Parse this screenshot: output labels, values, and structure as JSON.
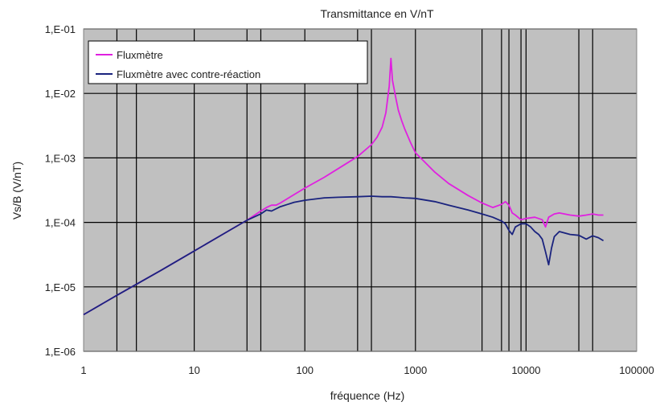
{
  "chart_data": {
    "type": "line",
    "title": "Transmittance en V/nT",
    "xlabel": "fréquence (Hz)",
    "ylabel": "Vs/B (V/nT)",
    "x_scale": "log",
    "y_scale": "log",
    "xlim": [
      1,
      100000
    ],
    "ylim": [
      1e-06,
      0.1
    ],
    "x_ticks": [
      {
        "value": 1,
        "label": "1"
      },
      {
        "value": 10,
        "label": "10"
      },
      {
        "value": 100,
        "label": "100"
      },
      {
        "value": 1000,
        "label": "1000"
      },
      {
        "value": 10000,
        "label": "10000"
      },
      {
        "value": 100000,
        "label": "100000"
      }
    ],
    "y_ticks": [
      {
        "value": 0.1,
        "label": "1,E-01"
      },
      {
        "value": 0.01,
        "label": "1,E-02"
      },
      {
        "value": 0.001,
        "label": "1,E-03"
      },
      {
        "value": 0.0001,
        "label": "1,E-04"
      },
      {
        "value": 1e-05,
        "label": "1,E-05"
      },
      {
        "value": 1e-06,
        "label": "1,E-06"
      }
    ],
    "x_gridlines": [
      2,
      3,
      10,
      30,
      40,
      100,
      300,
      400,
      1000,
      4000,
      6000,
      7000,
      9000,
      10000,
      30000,
      40000
    ],
    "grid": true,
    "legend_position": "top-left",
    "plot_background": "#c0c0c0",
    "series": [
      {
        "name": "Fluxmètre",
        "color": "#e020e0",
        "x": [
          1,
          2,
          5,
          10,
          20,
          30,
          40,
          45,
          50,
          55,
          60,
          80,
          100,
          150,
          200,
          300,
          400,
          450,
          500,
          540,
          580,
          600,
          620,
          660,
          700,
          750,
          800,
          900,
          1000,
          1500,
          2000,
          3000,
          4000,
          5000,
          6000,
          6500,
          7000,
          7500,
          8000,
          9000,
          10000,
          12000,
          14000,
          15000,
          16000,
          18000,
          20000,
          25000,
          30000,
          35000,
          40000,
          45000,
          50000
        ],
        "y": [
          3.7e-06,
          7.4e-06,
          1.8e-05,
          3.6e-05,
          7.2e-05,
          0.000108,
          0.00015,
          0.00017,
          0.000185,
          0.000185,
          0.0002,
          0.00027,
          0.00034,
          0.0005,
          0.00068,
          0.00105,
          0.0016,
          0.0021,
          0.003,
          0.005,
          0.013,
          0.035,
          0.016,
          0.009,
          0.0055,
          0.0038,
          0.0028,
          0.00175,
          0.0012,
          0.0006,
          0.0004,
          0.00026,
          0.0002,
          0.00017,
          0.00019,
          0.00021,
          0.000185,
          0.00014,
          0.00013,
          0.00011,
          0.000115,
          0.00012,
          0.00011,
          8.5e-05,
          0.00012,
          0.000135,
          0.00014,
          0.00013,
          0.000125,
          0.00013,
          0.000135,
          0.00013,
          0.00013
        ]
      },
      {
        "name": "Fluxmètre avec contre-réaction",
        "color": "#1a237e",
        "x": [
          1,
          2,
          5,
          10,
          20,
          30,
          40,
          45,
          50,
          60,
          70,
          80,
          100,
          150,
          200,
          300,
          400,
          500,
          600,
          700,
          800,
          1000,
          1500,
          2000,
          3000,
          4000,
          5000,
          6000,
          6500,
          7000,
          7500,
          8000,
          9000,
          10000,
          11000,
          12000,
          13000,
          14000,
          15000,
          16000,
          17000,
          18000,
          20000,
          25000,
          30000,
          35000,
          40000,
          45000,
          50000
        ],
        "y": [
          3.7e-06,
          7.4e-06,
          1.8e-05,
          3.6e-05,
          7.2e-05,
          0.000108,
          0.000135,
          0.000155,
          0.00015,
          0.000175,
          0.00019,
          0.000205,
          0.00022,
          0.00024,
          0.000245,
          0.00025,
          0.000255,
          0.00025,
          0.00025,
          0.000245,
          0.00024,
          0.000235,
          0.00021,
          0.000185,
          0.000155,
          0.000135,
          0.00012,
          0.000105,
          9.5e-05,
          7.5e-05,
          6.5e-05,
          8.5e-05,
          9.5e-05,
          9.5e-05,
          8.5e-05,
          7.2e-05,
          6.5e-05,
          5.5e-05,
          3.5e-05,
          2.2e-05,
          4e-05,
          6e-05,
          7.2e-05,
          6.5e-05,
          6.3e-05,
          5.5e-05,
          6.2e-05,
          5.8e-05,
          5.2e-05
        ]
      }
    ]
  }
}
